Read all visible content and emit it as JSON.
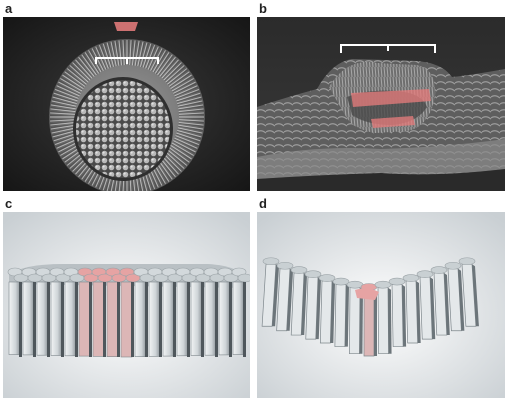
{
  "figure": {
    "panels": [
      {
        "label": "a",
        "kind": "sem-micrograph",
        "highlight_color": "#e07a7a"
      },
      {
        "label": "b",
        "kind": "sem-micrograph",
        "highlight_color": "#e07a7a"
      },
      {
        "label": "c",
        "kind": "3d-model",
        "highlight_color": "#e6a3a3"
      },
      {
        "label": "d",
        "kind": "3d-model",
        "highlight_color": "#e6a3a3"
      }
    ]
  }
}
